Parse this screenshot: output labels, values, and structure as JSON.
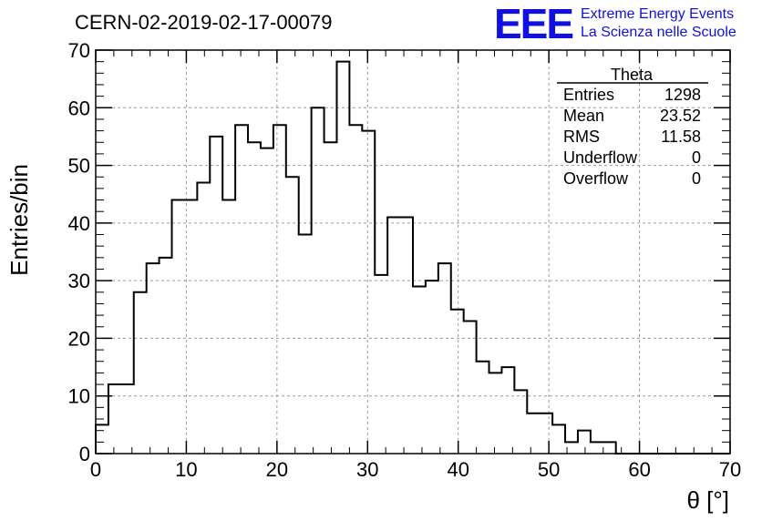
{
  "header": {
    "run_title": "CERN-02-2019-02-17-00079",
    "logo_text": "EEE",
    "brand_line1": "Extreme Energy Events",
    "brand_line2": "La Scienza nelle Scuole",
    "brand_color": "#1010e0"
  },
  "stats": {
    "title": "Theta",
    "rows": [
      {
        "label": "Entries",
        "value": "1298"
      },
      {
        "label": "Mean",
        "value": "23.52"
      },
      {
        "label": "RMS",
        "value": "11.58"
      },
      {
        "label": "Underflow",
        "value": "0"
      },
      {
        "label": "Overflow",
        "value": "0"
      }
    ]
  },
  "chart_data": {
    "type": "histogram",
    "xlabel": "θ [°]",
    "ylabel": "Entries/bin",
    "xlim": [
      0,
      70
    ],
    "ylim": [
      0,
      70
    ],
    "grid": true,
    "x_ticks": [
      0,
      10,
      20,
      30,
      40,
      50,
      60,
      70
    ],
    "y_ticks": [
      0,
      10,
      20,
      30,
      40,
      50,
      60,
      70
    ],
    "bin_edges": [
      0,
      1.4,
      2.8,
      4.2,
      5.6,
      7,
      8.4,
      9.8,
      11.2,
      12.6,
      14,
      15.4,
      16.8,
      18.2,
      19.6,
      21,
      22.4,
      23.8,
      25.2,
      26.6,
      28,
      29.4,
      30.8,
      32.2,
      33.6,
      35,
      36.4,
      37.8,
      39.2,
      40.6,
      42,
      43.4,
      44.8,
      46.2,
      47.6,
      49,
      50.4,
      51.8,
      53.2,
      54.6,
      56,
      57.4,
      58.8,
      60,
      70
    ],
    "values": [
      5,
      12,
      12,
      28,
      33,
      34,
      44,
      44,
      47,
      55,
      44,
      57,
      54,
      53,
      57,
      48,
      38,
      60,
      54,
      68,
      57,
      56,
      31,
      41,
      41,
      29,
      30,
      33,
      25,
      23,
      16,
      14,
      15,
      11,
      7,
      7,
      5,
      2,
      4,
      2,
      2,
      0,
      0,
      0
    ]
  }
}
